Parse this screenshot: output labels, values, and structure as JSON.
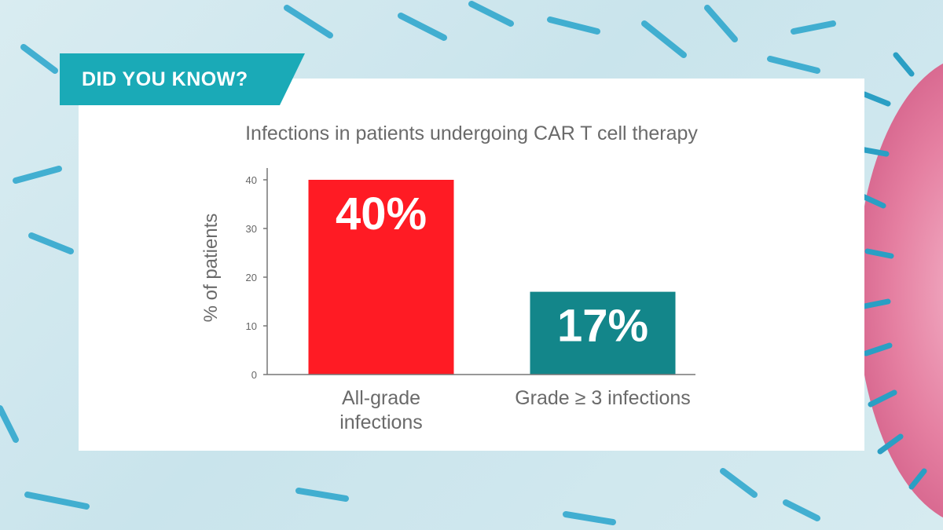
{
  "badge": {
    "label": "DID YOU KNOW?"
  },
  "colors": {
    "badge": "#1aaab7",
    "bar_all_grade": "#ff1b24",
    "bar_grade3": "#13868a",
    "virus_pink": "#e889a8",
    "antibody_blue": "#27a3c9"
  },
  "chart_data": {
    "type": "bar",
    "title": "Infections in patients undergoing CAR T cell therapy",
    "ylabel": "% of patients",
    "xlabel": "",
    "ylim": [
      0,
      40
    ],
    "yticks": [
      0,
      10,
      20,
      30,
      40
    ],
    "grid": false,
    "categories": [
      {
        "lines": [
          "All-grade",
          "infections"
        ]
      },
      {
        "lines": [
          "Grade ≥ 3 infections"
        ]
      }
    ],
    "values": [
      40,
      17
    ],
    "value_labels": [
      "40%",
      "17%"
    ]
  }
}
